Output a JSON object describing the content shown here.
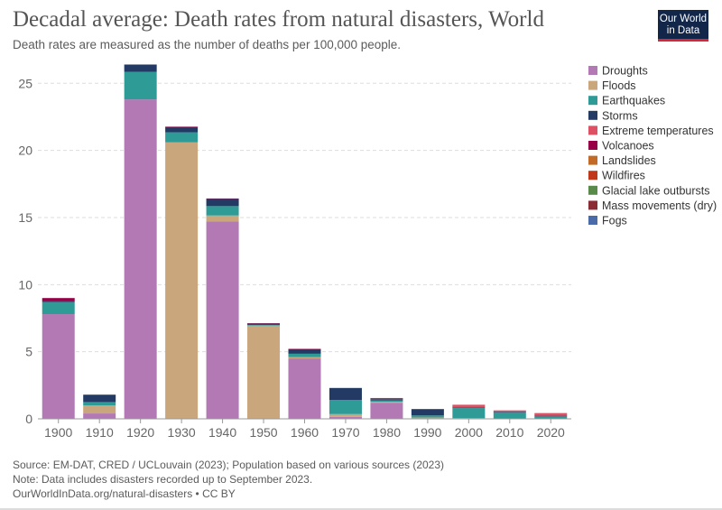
{
  "header": {
    "title": "Decadal average: Death rates from natural disasters, World",
    "subtitle": "Death rates are measured as the number of deaths per 100,000 people.",
    "logo_line1": "Our World",
    "logo_line2": "in Data"
  },
  "footer": {
    "source": "Source: EM-DAT, CRED / UCLouvain (2023); Population based on various sources (2023)",
    "note": "Note: Data includes disasters recorded up to September 2023.",
    "link": "OurWorldInData.org/natural-disasters • CC BY"
  },
  "chart_data": {
    "type": "bar",
    "stacked": true,
    "categories": [
      "1900",
      "1910",
      "1920",
      "1930",
      "1940",
      "1950",
      "1960",
      "1970",
      "1980",
      "1990",
      "2000",
      "2010",
      "2020"
    ],
    "ylim": [
      0,
      26.5
    ],
    "yticks": [
      0,
      5,
      10,
      15,
      20,
      25
    ],
    "grid": true,
    "legend_position": "right",
    "series": [
      {
        "name": "Droughts",
        "color": "#b279b4",
        "values": [
          7.8,
          0.4,
          23.8,
          0,
          14.7,
          0,
          4.5,
          0.15,
          1.2,
          0,
          0,
          0,
          0
        ]
      },
      {
        "name": "Floods",
        "color": "#c9a67c",
        "values": [
          0,
          0.6,
          0,
          20.6,
          0.45,
          6.95,
          0.1,
          0.2,
          0.07,
          0.1,
          0.05,
          0.03,
          0.03
        ]
      },
      {
        "name": "Earthquakes",
        "color": "#2e9b97",
        "values": [
          0.9,
          0.25,
          2.05,
          0.75,
          0.7,
          0.05,
          0.25,
          1.05,
          0.1,
          0.15,
          0.75,
          0.45,
          0.15
        ]
      },
      {
        "name": "Storms",
        "color": "#223a64",
        "values": [
          0.05,
          0.5,
          0.55,
          0.4,
          0.55,
          0.1,
          0.35,
          0.9,
          0.1,
          0.45,
          0.05,
          0.05,
          0.05
        ]
      },
      {
        "name": "Extreme temperatures",
        "color": "#dd5164",
        "values": [
          0,
          0,
          0,
          0,
          0,
          0,
          0,
          0,
          0.03,
          0.02,
          0.2,
          0.1,
          0.2
        ]
      },
      {
        "name": "Volcanoes",
        "color": "#970046",
        "values": [
          0.25,
          0.05,
          0,
          0.02,
          0.02,
          0.02,
          0.01,
          0,
          0.05,
          0.01,
          0,
          0,
          0
        ]
      },
      {
        "name": "Landslides",
        "color": "#c26a26",
        "values": [
          0,
          0,
          0,
          0,
          0,
          0,
          0,
          0,
          0,
          0,
          0,
          0,
          0
        ]
      },
      {
        "name": "Wildfires",
        "color": "#c0381b",
        "values": [
          0,
          0,
          0,
          0,
          0,
          0,
          0,
          0,
          0,
          0,
          0,
          0,
          0
        ]
      },
      {
        "name": "Glacial lake outbursts",
        "color": "#5a8a4a",
        "values": [
          0,
          0,
          0,
          0,
          0,
          0,
          0,
          0,
          0,
          0,
          0,
          0,
          0
        ]
      },
      {
        "name": "Mass movements (dry)",
        "color": "#8b2b34",
        "values": [
          0,
          0,
          0,
          0,
          0,
          0,
          0,
          0,
          0,
          0,
          0,
          0,
          0
        ]
      },
      {
        "name": "Fogs",
        "color": "#4b6aa8",
        "values": [
          0,
          0,
          0,
          0,
          0,
          0,
          0,
          0,
          0,
          0,
          0,
          0,
          0
        ]
      }
    ]
  }
}
